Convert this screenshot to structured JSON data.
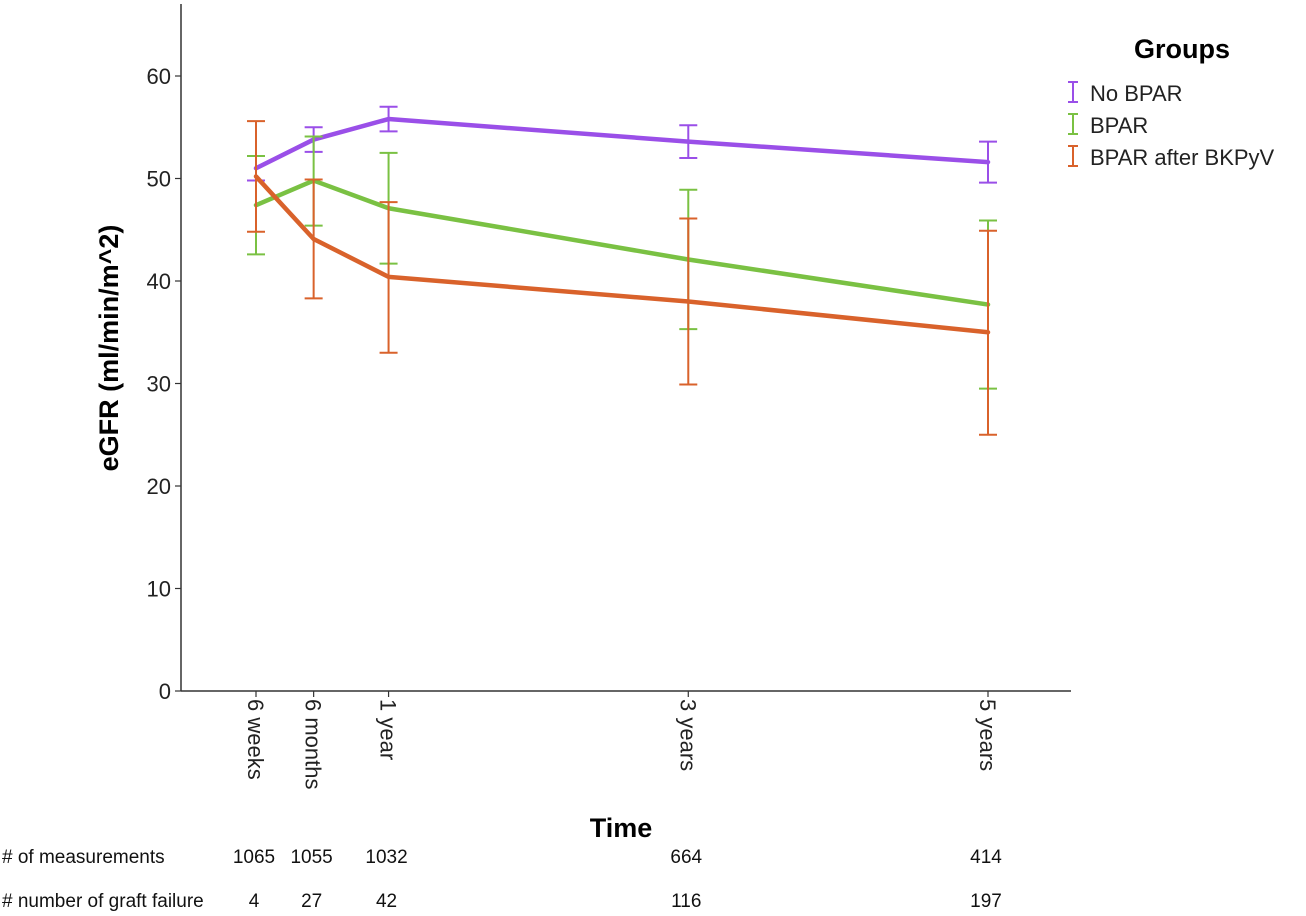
{
  "chart_data": {
    "type": "line",
    "title": "",
    "xlabel": "Time",
    "ylabel": "eGFR (ml/min/m^2)",
    "ylim": [
      0,
      65
    ],
    "yticks": [
      0,
      10,
      20,
      30,
      40,
      50,
      60
    ],
    "grid": false,
    "x_weeks": [
      6,
      26,
      52,
      156,
      260
    ],
    "categories": [
      "6 weeks",
      "6 months",
      "1 year",
      "3 years",
      "5 years"
    ],
    "legend": {
      "title": "Groups",
      "placement": "top-right"
    },
    "series": [
      {
        "name": "No BPAR",
        "color": "#9a4fe8",
        "values": [
          51.0,
          53.8,
          55.8,
          53.6,
          51.6
        ],
        "err_low": [
          49.8,
          52.6,
          54.6,
          52.0,
          49.6
        ],
        "err_high": [
          52.2,
          55.0,
          57.0,
          55.2,
          53.6
        ]
      },
      {
        "name": "BPAR",
        "color": "#7ac143",
        "values": [
          47.4,
          49.8,
          47.1,
          42.1,
          37.7
        ],
        "err_low": [
          42.6,
          45.4,
          41.7,
          35.3,
          29.5
        ],
        "err_high": [
          52.2,
          54.1,
          52.5,
          48.9,
          45.9
        ]
      },
      {
        "name": "BPAR after BKPyV",
        "color": "#d9622b",
        "values": [
          50.2,
          44.1,
          40.4,
          38.0,
          35.0
        ],
        "err_low": [
          44.8,
          38.3,
          33.0,
          29.9,
          25.0
        ],
        "err_high": [
          55.6,
          49.9,
          47.7,
          46.1,
          44.9
        ]
      }
    ],
    "table": {
      "rows": [
        {
          "label": "# of measurements",
          "values": [
            "1065",
            "1055",
            "1032",
            "664",
            "414"
          ]
        },
        {
          "label": "# number of graft failure",
          "values": [
            "4",
            "27",
            "42",
            "116",
            "197"
          ]
        }
      ]
    }
  }
}
